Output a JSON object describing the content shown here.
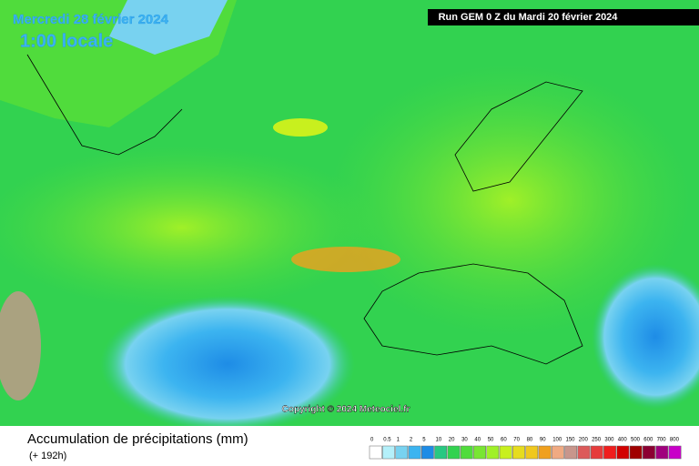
{
  "header": {
    "date": "Mercredi 28 février 2024",
    "time": "1:00 locale",
    "run": "Run GEM 0 Z du Mardi 20 février 2024"
  },
  "copyright": "Copyright © 2024 Meteociel.fr",
  "footer": {
    "title": "Accumulation de précipitations (mm)",
    "subtitle": "(+ 192h)"
  },
  "legend": {
    "labels": [
      0,
      0.5,
      1,
      2,
      5,
      10,
      20,
      30,
      40,
      50,
      60,
      70,
      80,
      90,
      100,
      150,
      200,
      250,
      300,
      400,
      500,
      600,
      700,
      800
    ],
    "colors": [
      "#ffffff",
      "#b4f0fa",
      "#78d2f0",
      "#3cb4f0",
      "#1e8ce6",
      "#28c882",
      "#32d250",
      "#50dc3c",
      "#78e632",
      "#a0f028",
      "#c8f01e",
      "#e6dc1e",
      "#f0c81e",
      "#f0a01e",
      "#f0aa82",
      "#c8968c",
      "#dc5a5a",
      "#e63c3c",
      "#f01e1e",
      "#d20000",
      "#a00000",
      "#8c0032",
      "#a0007d",
      "#c800c8"
    ]
  }
}
